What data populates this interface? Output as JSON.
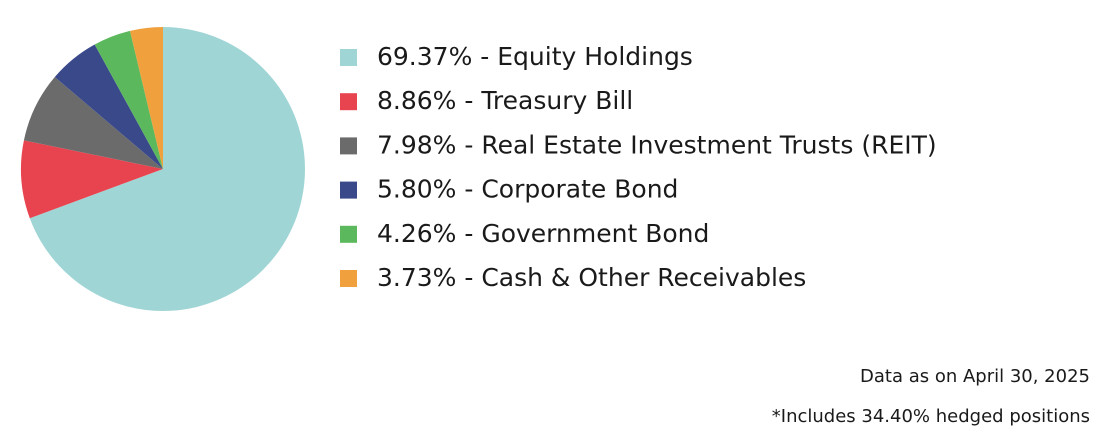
{
  "chart_data": {
    "type": "pie",
    "categories": [
      "69.37% - Equity Holdings",
      "8.86% - Treasury Bill",
      "7.98% - Real Estate Investment Trusts (REIT)",
      "5.80% - Corporate Bond",
      "4.26% - Government Bond",
      "3.73% - Cash & Other Receivables"
    ],
    "values": [
      69.37,
      8.86,
      7.98,
      5.8,
      4.26,
      3.73
    ],
    "colors": [
      "#a0d5d6",
      "#e8444f",
      "#6b6b6b",
      "#39498a",
      "#5cb85c",
      "#f0a03c"
    ],
    "notes": [
      "Data as on April 30, 2025",
      "*Includes 34.40% hedged positions"
    ]
  }
}
